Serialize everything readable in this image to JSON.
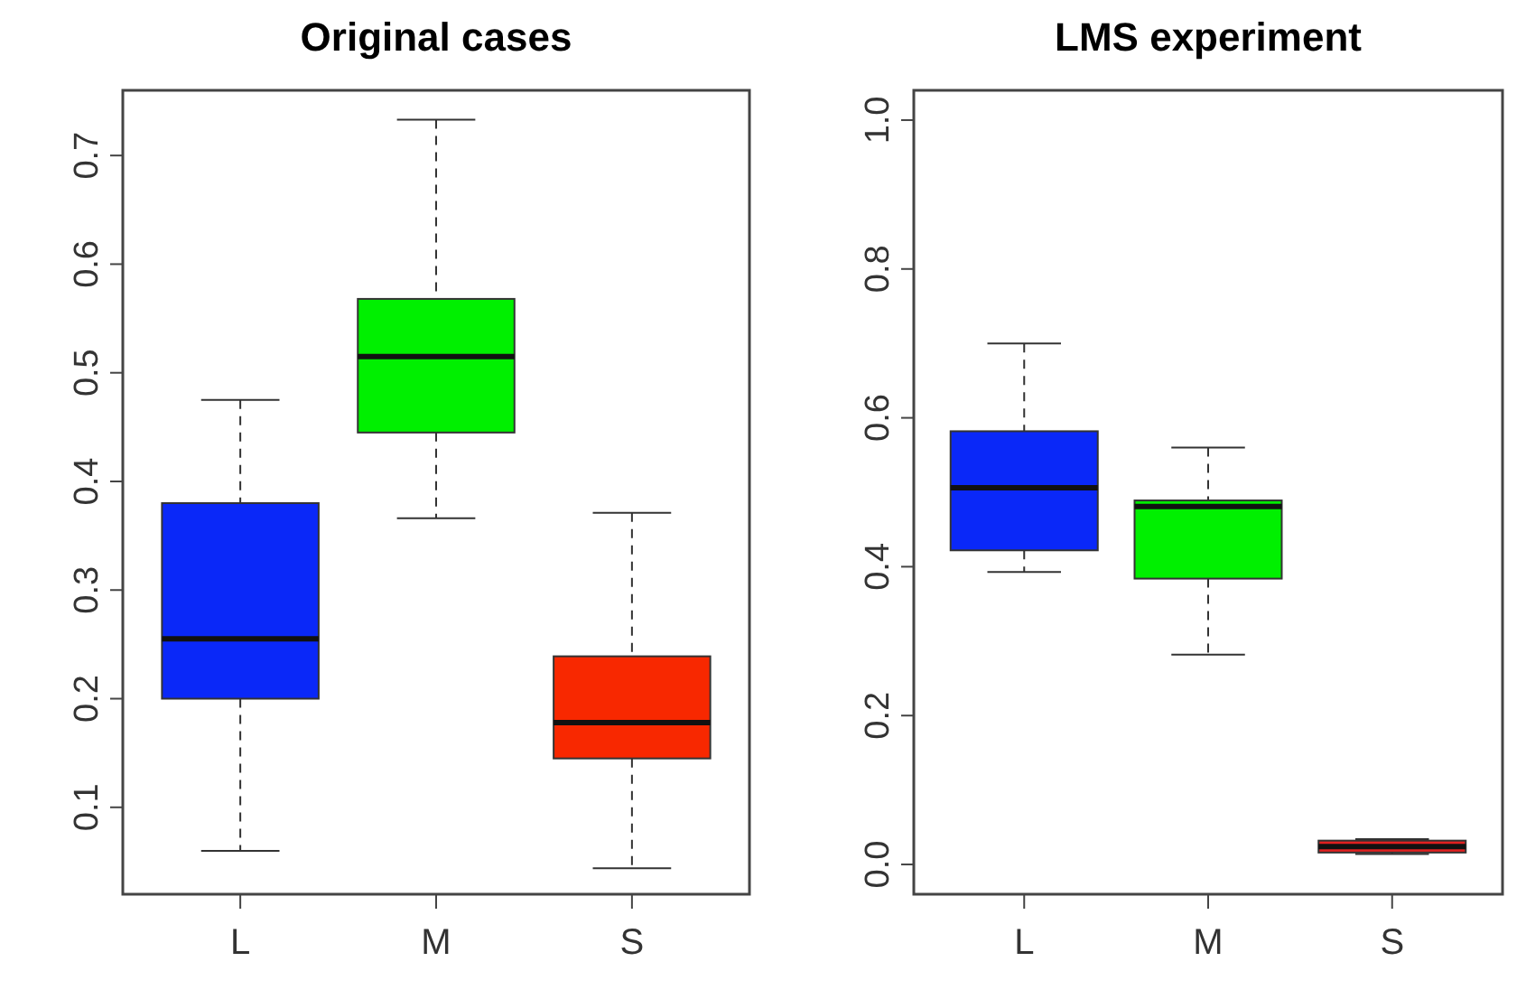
{
  "chart_data": [
    {
      "type": "box",
      "title": "Original cases",
      "categories": [
        "L",
        "M",
        "S"
      ],
      "colors": [
        "#0a28f8",
        "#00f000",
        "#f82800"
      ],
      "ylim": [
        0.02,
        0.76
      ],
      "yticks": [
        0.1,
        0.2,
        0.3,
        0.4,
        0.5,
        0.6,
        0.7
      ],
      "boxes": [
        {
          "low": 0.06,
          "q1": 0.2,
          "median": 0.255,
          "q3": 0.38,
          "high": 0.475
        },
        {
          "low": 0.366,
          "q1": 0.445,
          "median": 0.515,
          "q3": 0.568,
          "high": 0.733
        },
        {
          "low": 0.044,
          "q1": 0.145,
          "median": 0.178,
          "q3": 0.239,
          "high": 0.371
        }
      ]
    },
    {
      "type": "box",
      "title": "LMS experiment",
      "categories": [
        "L",
        "M",
        "S"
      ],
      "colors": [
        "#0a28f8",
        "#00f000",
        "#e02020"
      ],
      "ylim": [
        -0.04,
        1.04
      ],
      "yticks": [
        {
          "value": 0,
          "label": "0.0"
        },
        0.2,
        0.4,
        0.6,
        0.8,
        {
          "value": 1,
          "label": "1.0"
        }
      ],
      "boxes": [
        {
          "low": 0.393,
          "q1": 0.422,
          "median": 0.506,
          "q3": 0.582,
          "high": 0.7
        },
        {
          "low": 0.282,
          "q1": 0.384,
          "median": 0.481,
          "q3": 0.489,
          "high": 0.56
        },
        {
          "low": 0.014,
          "q1": 0.016,
          "median": 0.024,
          "q3": 0.032,
          "high": 0.034
        }
      ]
    }
  ]
}
